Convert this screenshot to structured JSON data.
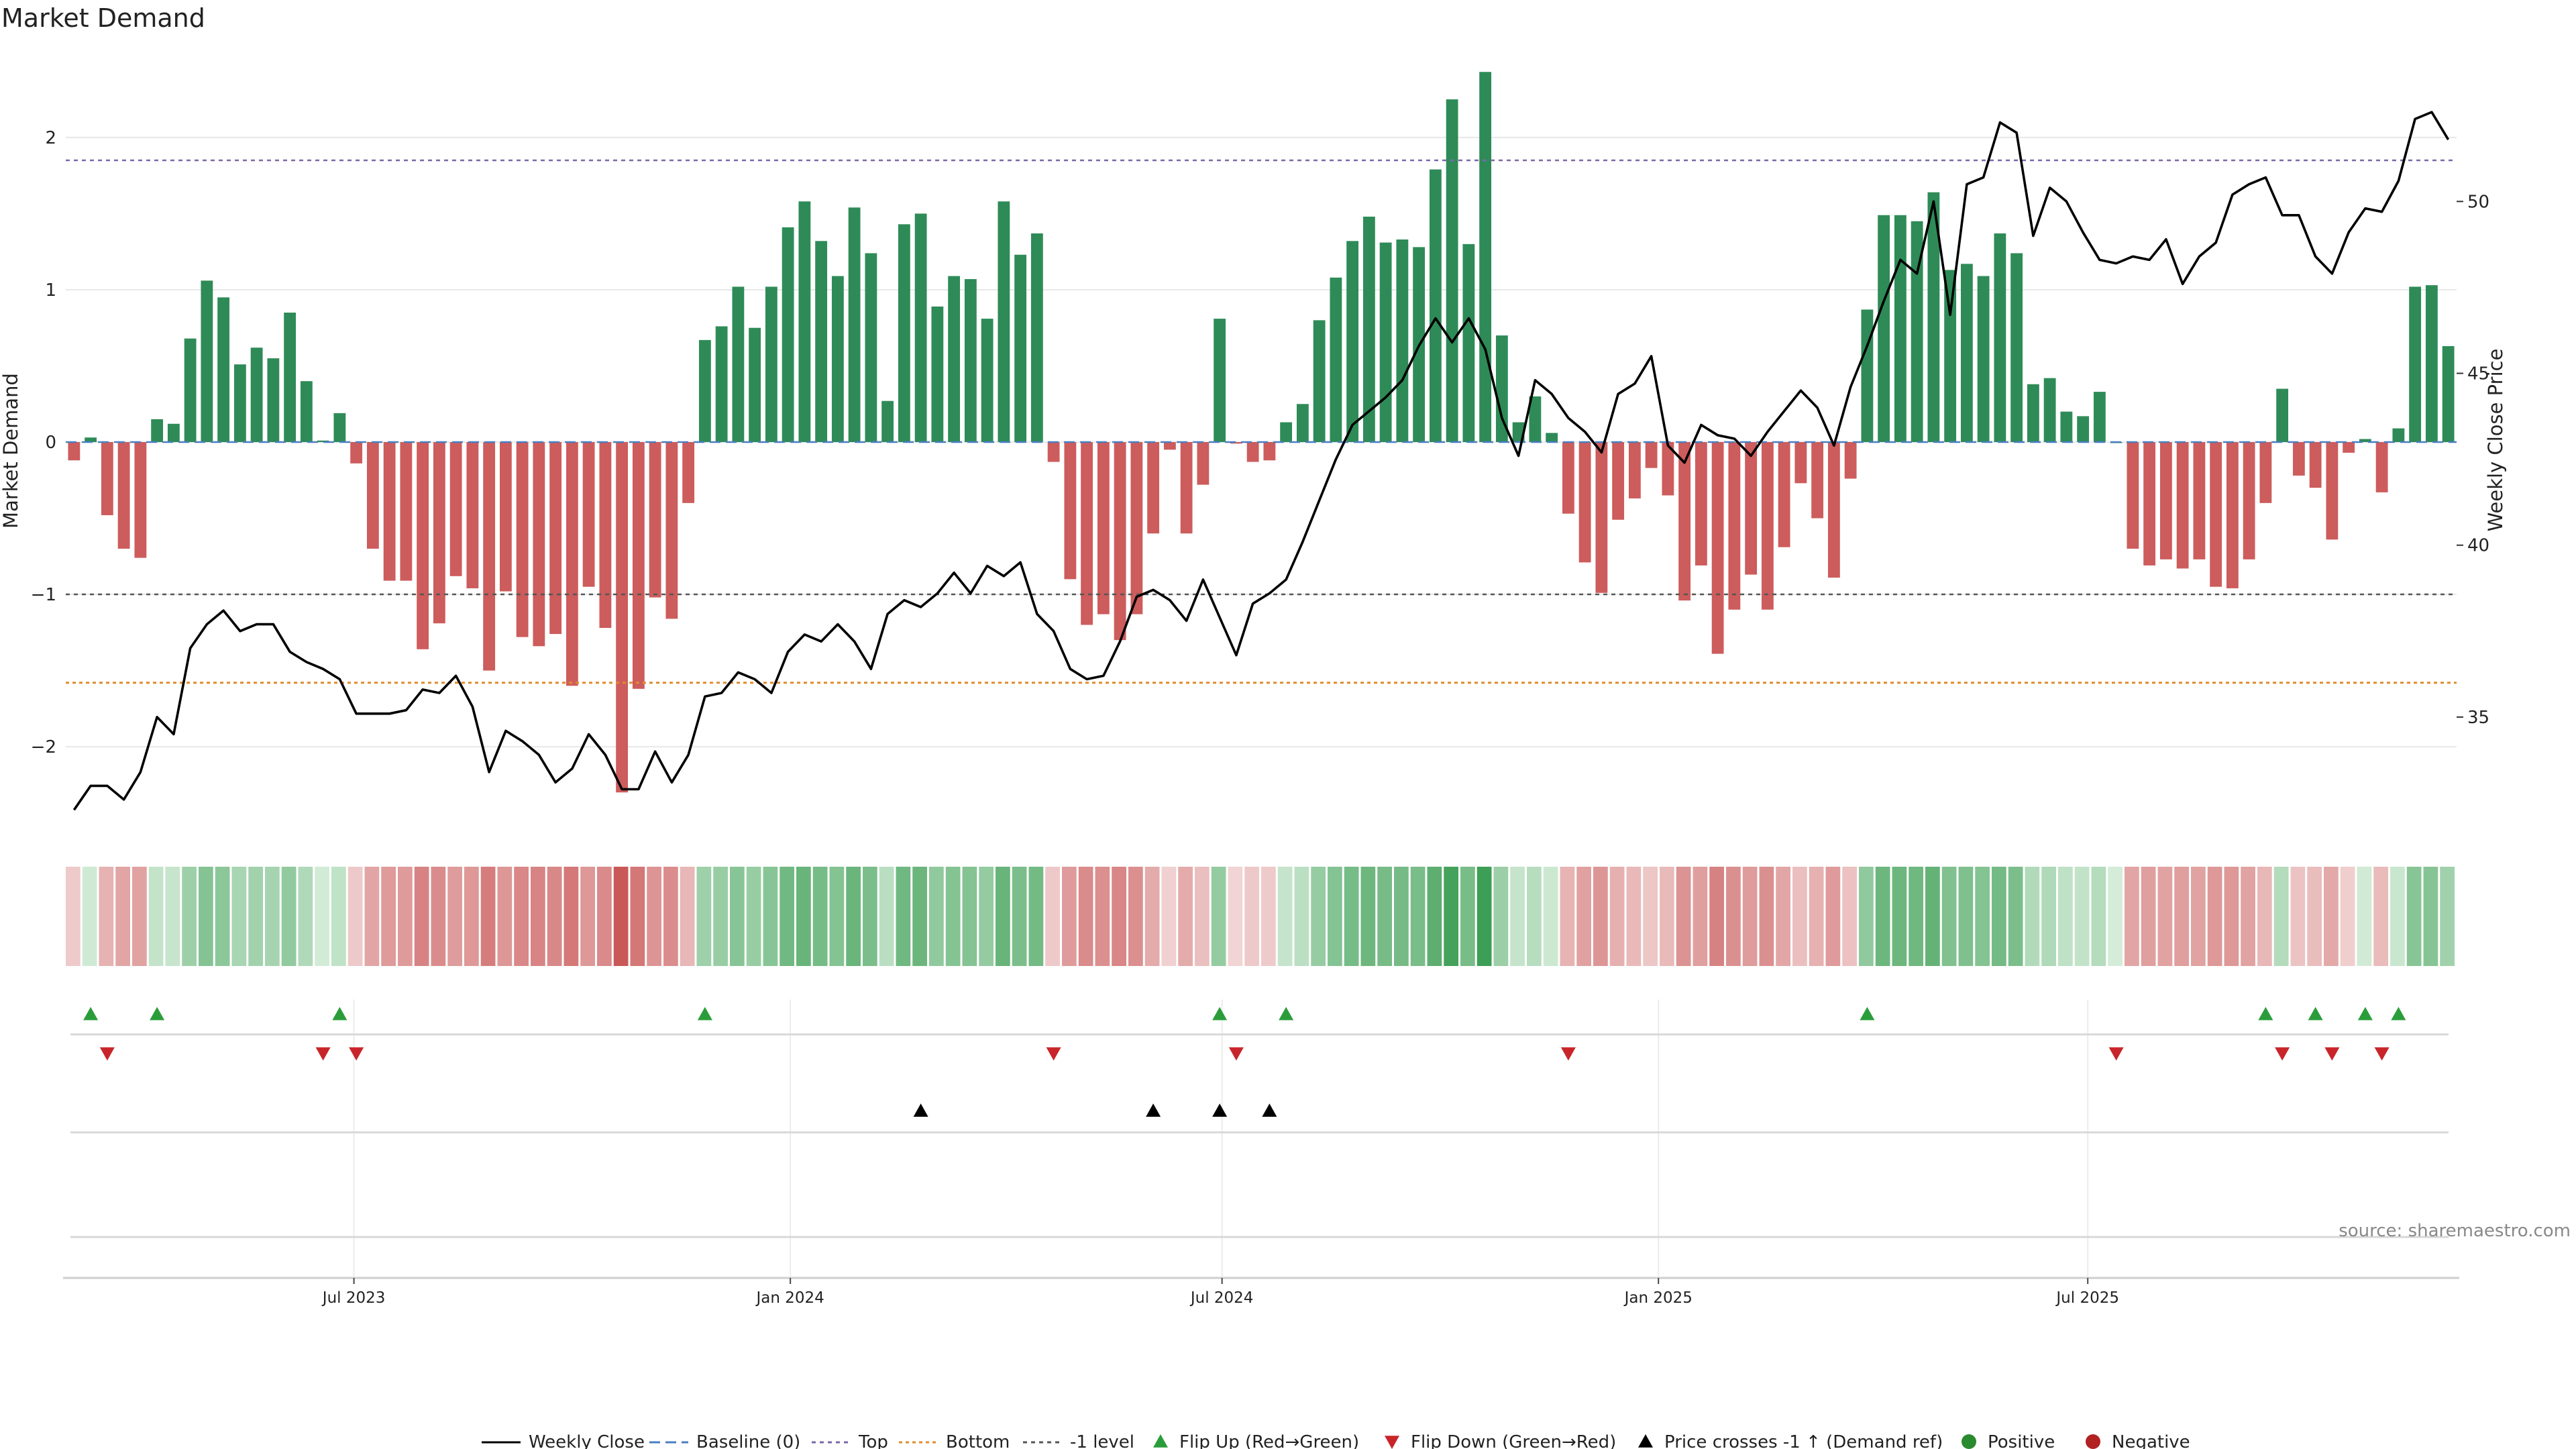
{
  "title": "Market Demand",
  "source": "source: sharemaestro.com",
  "chart_data": {
    "type": "bar",
    "title": "Market Demand",
    "ylabel": "Market Demand",
    "y2label": "Weekly Close Price",
    "ylim": [
      -2.55,
      2.55
    ],
    "y2lim": [
      31.7,
      54.3
    ],
    "yticks": [
      -2,
      -1,
      0,
      1,
      2
    ],
    "yticklabels": [
      "−2",
      "−1",
      "0",
      "1",
      "2"
    ],
    "y2ticks": [
      35,
      40,
      45,
      50
    ],
    "y2ticklabels": [
      "35",
      "40",
      "45",
      "50"
    ],
    "x_start": "2023-03-05",
    "x_end": "2025-10-05",
    "x_step_weeks": 1,
    "xticks": [
      "2023-07-01",
      "2024-01-01",
      "2024-07-01",
      "2025-01-01",
      "2025-07-01"
    ],
    "xticklabels": [
      "Jul 2023",
      "Jan 2024",
      "Jul 2024",
      "Jan 2025",
      "Jul 2025"
    ],
    "levels": {
      "top": 1.85,
      "bottom": -1.58,
      "minus_one": -1.0,
      "baseline": 0
    },
    "colors": {
      "positive": "#2e8b57",
      "negative": "#cd5c5c",
      "close": "#000000",
      "top": "#7b68a8",
      "bottom": "#e08c2c",
      "minus_one": "#555555",
      "baseline": "#4a7fc1",
      "flip_up": "#2a9d3a",
      "flip_down": "#c8252a",
      "cross": "#000000"
    },
    "series": [
      {
        "name": "Market Demand",
        "values": [
          -0.12,
          0.03,
          -0.48,
          -0.7,
          -0.76,
          0.15,
          0.12,
          0.68,
          1.06,
          0.95,
          0.51,
          0.62,
          0.55,
          0.85,
          0.4,
          0.01,
          0.19,
          -0.14,
          -0.7,
          -0.91,
          -0.91,
          -1.36,
          -1.19,
          -0.88,
          -0.96,
          -1.5,
          -0.98,
          -1.28,
          -1.34,
          -1.26,
          -1.6,
          -0.95,
          -1.22,
          -2.3,
          -1.62,
          -1.02,
          -1.16,
          -0.4,
          0.67,
          0.76,
          1.02,
          0.75,
          1.02,
          1.41,
          1.58,
          1.32,
          1.09,
          1.54,
          1.24,
          0.27,
          1.43,
          1.5,
          0.89,
          1.09,
          1.07,
          0.81,
          1.58,
          1.23,
          1.37,
          -0.13,
          -0.9,
          -1.2,
          -1.13,
          -1.3,
          -1.13,
          -0.6,
          -0.05,
          -0.6,
          -0.28,
          0.81,
          -0.01,
          -0.13,
          -0.12,
          0.13,
          0.25,
          0.8,
          1.08,
          1.32,
          1.48,
          1.31,
          1.33,
          1.28,
          1.79,
          2.25,
          1.3,
          2.43,
          0.7,
          0.13,
          0.3,
          0.06,
          -0.47,
          -0.79,
          -0.99,
          -0.51,
          -0.37,
          -0.17,
          -0.35,
          -1.04,
          -0.81,
          -1.39,
          -1.1,
          -0.87,
          -1.1,
          -0.69,
          -0.27,
          -0.5,
          -0.89,
          -0.24,
          0.87,
          1.49,
          1.49,
          1.45,
          1.64,
          1.13,
          1.17,
          1.09,
          1.37,
          1.24,
          0.38,
          0.42,
          0.2,
          0.17,
          0.33,
          0.0,
          -0.7,
          -0.81,
          -0.77,
          -0.83,
          -0.77,
          -0.95,
          -0.96,
          -0.77,
          -0.4,
          0.35,
          -0.22,
          -0.3,
          -0.64,
          -0.07,
          0.02,
          -0.33,
          0.09,
          1.02,
          1.03,
          0.63
        ]
      },
      {
        "name": "Weekly Close",
        "values": [
          32.3,
          33.0,
          33.0,
          32.6,
          33.4,
          35.0,
          34.5,
          37.0,
          37.7,
          38.1,
          37.5,
          37.7,
          37.7,
          36.9,
          36.6,
          36.4,
          36.1,
          35.1,
          35.1,
          35.1,
          35.2,
          35.8,
          35.7,
          36.2,
          35.3,
          33.4,
          34.6,
          34.3,
          33.9,
          33.1,
          33.5,
          34.5,
          33.9,
          32.9,
          32.9,
          34.0,
          33.1,
          33.9,
          35.6,
          35.7,
          36.3,
          36.1,
          35.7,
          36.9,
          37.4,
          37.2,
          37.7,
          37.2,
          36.4,
          38.0,
          38.4,
          38.2,
          38.6,
          39.2,
          38.6,
          39.4,
          39.1,
          39.5,
          38.0,
          37.5,
          36.4,
          36.1,
          36.2,
          37.2,
          38.5,
          38.7,
          38.4,
          37.8,
          39.0,
          37.9,
          36.8,
          38.3,
          38.6,
          39.0,
          40.1,
          41.3,
          42.5,
          43.5,
          43.9,
          44.3,
          44.8,
          45.8,
          46.6,
          45.9,
          46.6,
          45.7,
          43.7,
          42.6,
          44.8,
          44.4,
          43.7,
          43.3,
          42.7,
          44.4,
          44.7,
          45.5,
          42.9,
          42.4,
          43.5,
          43.2,
          43.1,
          42.6,
          43.3,
          43.9,
          44.5,
          44.0,
          42.9,
          44.6,
          45.8,
          47.1,
          48.3,
          47.9,
          50.0,
          46.7,
          50.5,
          50.7,
          52.3,
          52.0,
          49.0,
          50.4,
          50.0,
          49.1,
          48.3,
          48.2,
          48.4,
          48.3,
          48.9,
          47.6,
          48.4,
          48.8,
          50.2,
          50.5,
          50.7,
          49.6,
          49.6,
          48.4,
          47.9,
          49.1,
          49.8,
          49.7,
          50.6,
          52.4,
          52.6,
          51.8
        ]
      }
    ],
    "flip_up_weeks": [
      1,
      5,
      16,
      38,
      69,
      73,
      108,
      132,
      135,
      138,
      140
    ],
    "flip_down_weeks": [
      2,
      15,
      17,
      59,
      70,
      90,
      123,
      133,
      136,
      139
    ],
    "price_cross_weeks": [
      51,
      65,
      69,
      72
    ],
    "legend": [
      "Weekly Close",
      "Baseline (0)",
      "Top",
      "Bottom",
      "-1 level",
      "Flip Up (Red→Green)",
      "Flip Down (Green→Red)",
      "Price crosses -1 ↑ (Demand ref)",
      "Positive",
      "Negative"
    ],
    "legend_position": "bottom"
  }
}
